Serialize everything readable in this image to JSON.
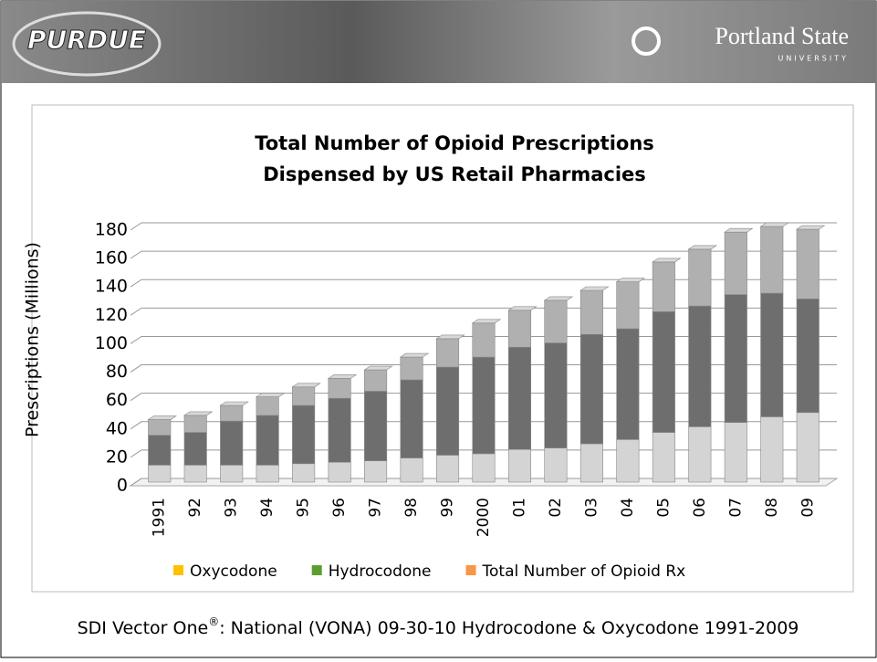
{
  "header": {
    "left_logo": "PURDUE",
    "right_logo": "Portland State",
    "right_logo_sub": "UNIVERSITY"
  },
  "chart_data": {
    "type": "stacked_bar",
    "title": [
      "Total Number of Opioid Prescriptions",
      "Dispensed by US Retail Pharmacies"
    ],
    "y_label": "Prescriptions (Millions)",
    "categories": [
      "1991",
      "92",
      "93",
      "94",
      "95",
      "96",
      "97",
      "98",
      "99",
      "2000",
      "01",
      "02",
      "03",
      "04",
      "05",
      "06",
      "07",
      "08",
      "09"
    ],
    "series": [
      {
        "name": "Oxycodone",
        "color": "#ffc000",
        "bar_color": "#d4d4d4",
        "values": [
          12,
          12,
          12,
          12,
          13,
          14,
          15,
          17,
          19,
          20,
          23,
          24,
          27,
          30,
          35,
          39,
          42,
          46,
          49
        ]
      },
      {
        "name": "Hydrocodone",
        "color": "#5b9e2e",
        "bar_color": "#6e6e6e",
        "values": [
          21,
          23,
          31,
          35,
          41,
          45,
          49,
          55,
          62,
          68,
          72,
          74,
          77,
          78,
          85,
          85,
          90,
          87,
          80
        ]
      },
      {
        "name": "Total Number of Opioid Rx",
        "color": "#f79646",
        "bar_color": "#b0b0b0",
        "values": [
          11,
          12,
          11,
          13,
          13,
          14,
          15,
          16,
          20,
          24,
          26,
          30,
          31,
          33,
          35,
          40,
          44,
          47,
          49
        ]
      }
    ],
    "ylim": [
      0,
      180
    ],
    "yticks": [
      0,
      20,
      40,
      60,
      80,
      100,
      120,
      140,
      160,
      180
    ],
    "grid": true
  },
  "footer": {
    "source": "SDI Vector One",
    "mark": "®",
    "rest": ": National (VONA) 09-30-10 Hydrocodone & Oxycodone 1991-2009"
  }
}
